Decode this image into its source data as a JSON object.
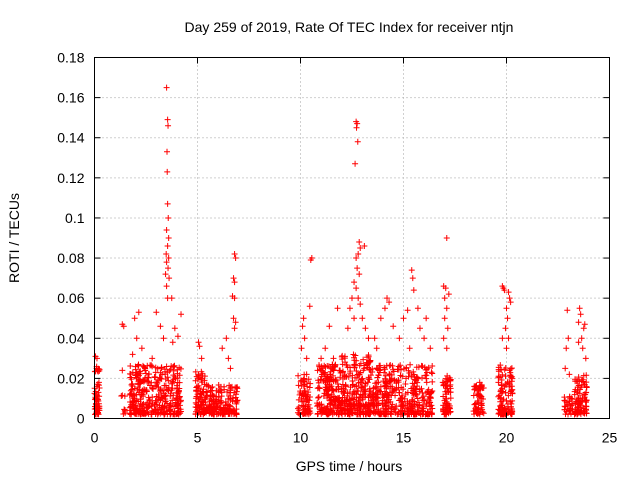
{
  "chart_data": {
    "type": "scatter",
    "title": "Day 259 of 2019, Rate Of TEC Index for receiver ntjn",
    "xlabel": "GPS time / hours",
    "ylabel": "ROTI / TECUs",
    "xlim": [
      0,
      25
    ],
    "ylim": [
      0,
      0.18
    ],
    "x_ticks": [
      0,
      5,
      10,
      15,
      20,
      25
    ],
    "x_tick_labels": [
      "0",
      "5",
      "10",
      "15",
      "20",
      "25"
    ],
    "y_ticks": [
      0,
      0.02,
      0.04,
      0.06,
      0.08,
      0.1,
      0.12,
      0.14,
      0.16,
      0.18
    ],
    "y_tick_labels": [
      "0",
      "0.02",
      "0.04",
      "0.06",
      "0.08",
      "0.1",
      "0.12",
      "0.14",
      "0.16",
      "0.18"
    ],
    "grid": true,
    "marker": "+",
    "color": "#ff0000",
    "series": [
      {
        "name": "ROTI",
        "clusters": [
          {
            "range": [
              0.0,
              0.25
            ],
            "count": 60,
            "ymax": 0.024,
            "peaks": [
              [
                0.05,
                0.031
              ],
              [
                0.12,
                0.03
              ],
              [
                0.1,
                0.025
              ]
            ]
          },
          {
            "range": [
              1.3,
              1.5
            ],
            "count": 8,
            "ymax": 0.01,
            "peaks": [
              [
                1.35,
                0.047
              ],
              [
                1.42,
                0.046
              ],
              [
                1.35,
                0.024
              ]
            ]
          },
          {
            "range": [
              1.7,
              2.5
            ],
            "count": 140,
            "ymax": 0.025,
            "peaks": [
              [
                1.95,
                0.05
              ],
              [
                2.15,
                0.053
              ],
              [
                2.05,
                0.04
              ],
              [
                2.3,
                0.035
              ],
              [
                1.85,
                0.032
              ]
            ]
          },
          {
            "range": [
              2.5,
              4.2
            ],
            "count": 230,
            "ymax": 0.025,
            "peaks": [
              [
                3.5,
                0.165
              ],
              [
                3.55,
                0.149
              ],
              [
                3.57,
                0.146
              ],
              [
                3.52,
                0.133
              ],
              [
                3.53,
                0.123
              ],
              [
                3.55,
                0.107
              ],
              [
                3.58,
                0.1
              ],
              [
                3.5,
                0.094
              ],
              [
                3.6,
                0.09
              ],
              [
                3.55,
                0.086
              ],
              [
                3.48,
                0.082
              ],
              [
                3.6,
                0.08
              ],
              [
                3.5,
                0.078
              ],
              [
                3.57,
                0.075
              ],
              [
                3.45,
                0.072
              ],
              [
                3.62,
                0.07
              ],
              [
                3.5,
                0.066
              ],
              [
                3.55,
                0.06
              ],
              [
                3.75,
                0.06
              ],
              [
                3.0,
                0.053
              ],
              [
                3.2,
                0.046
              ],
              [
                4.2,
                0.052
              ],
              [
                3.9,
                0.045
              ],
              [
                4.05,
                0.041
              ],
              [
                3.8,
                0.038
              ],
              [
                3.35,
                0.04
              ],
              [
                2.8,
                0.03
              ]
            ]
          },
          {
            "range": [
              4.9,
              5.4
            ],
            "count": 80,
            "ymax": 0.022,
            "peaks": [
              [
                5.05,
                0.038
              ],
              [
                5.1,
                0.036
              ],
              [
                5.2,
                0.03
              ]
            ]
          },
          {
            "range": [
              5.4,
              6.95
            ],
            "count": 170,
            "ymax": 0.015,
            "peaks": [
              [
                6.8,
                0.082
              ],
              [
                6.85,
                0.08
              ],
              [
                6.75,
                0.07
              ],
              [
                6.8,
                0.068
              ],
              [
                6.7,
                0.061
              ],
              [
                6.8,
                0.06
              ],
              [
                6.75,
                0.05
              ],
              [
                6.85,
                0.048
              ],
              [
                6.8,
                0.045
              ],
              [
                6.4,
                0.04
              ],
              [
                6.2,
                0.035
              ],
              [
                6.5,
                0.03
              ],
              [
                6.6,
                0.025
              ]
            ]
          },
          {
            "range": [
              9.85,
              10.5
            ],
            "count": 80,
            "ymax": 0.02,
            "peaks": [
              [
                10.15,
                0.05
              ],
              [
                10.1,
                0.046
              ],
              [
                10.2,
                0.04
              ],
              [
                10.05,
                0.035
              ],
              [
                10.3,
                0.03
              ],
              [
                10.45,
                0.056
              ],
              [
                10.5,
                0.079
              ],
              [
                10.55,
                0.08
              ]
            ]
          },
          {
            "range": [
              10.8,
              12.0
            ],
            "count": 190,
            "ymax": 0.025,
            "peaks": [
              [
                11.4,
                0.046
              ],
              [
                11.8,
                0.055
              ],
              [
                11.2,
                0.035
              ],
              [
                11.6,
                0.03
              ],
              [
                11.0,
                0.03
              ]
            ]
          },
          {
            "range": [
              12.0,
              13.4
            ],
            "count": 240,
            "ymax": 0.03,
            "peaks": [
              [
                12.7,
                0.148
              ],
              [
                12.75,
                0.147
              ],
              [
                12.72,
                0.145
              ],
              [
                12.78,
                0.138
              ],
              [
                12.65,
                0.127
              ],
              [
                12.85,
                0.088
              ],
              [
                12.9,
                0.085
              ],
              [
                13.1,
                0.086
              ],
              [
                12.8,
                0.082
              ],
              [
                12.7,
                0.08
              ],
              [
                12.75,
                0.075
              ],
              [
                12.85,
                0.072
              ],
              [
                12.6,
                0.068
              ],
              [
                12.7,
                0.065
              ],
              [
                12.5,
                0.06
              ],
              [
                12.8,
                0.06
              ],
              [
                12.4,
                0.055
              ],
              [
                12.6,
                0.05
              ],
              [
                12.9,
                0.057
              ],
              [
                13.0,
                0.05
              ],
              [
                13.15,
                0.045
              ],
              [
                12.3,
                0.045
              ],
              [
                13.3,
                0.04
              ]
            ]
          },
          {
            "range": [
              13.4,
              16.4
            ],
            "count": 380,
            "ymax": 0.025,
            "peaks": [
              [
                15.4,
                0.074
              ],
              [
                15.45,
                0.07
              ],
              [
                15.5,
                0.064
              ],
              [
                14.2,
                0.06
              ],
              [
                14.3,
                0.058
              ],
              [
                14.1,
                0.055
              ],
              [
                15.2,
                0.054
              ],
              [
                15.7,
                0.055
              ],
              [
                16.1,
                0.05
              ],
              [
                13.9,
                0.05
              ],
              [
                15.0,
                0.05
              ],
              [
                14.5,
                0.046
              ],
              [
                13.6,
                0.04
              ],
              [
                16.0,
                0.04
              ],
              [
                15.8,
                0.045
              ],
              [
                14.8,
                0.04
              ],
              [
                16.3,
                0.035
              ],
              [
                13.7,
                0.035
              ],
              [
                15.3,
                0.035
              ]
            ]
          },
          {
            "range": [
              16.9,
              17.3
            ],
            "count": 70,
            "ymax": 0.02,
            "peaks": [
              [
                17.1,
                0.09
              ],
              [
                16.95,
                0.066
              ],
              [
                17.05,
                0.065
              ],
              [
                17.2,
                0.062
              ],
              [
                17.0,
                0.06
              ],
              [
                17.1,
                0.055
              ],
              [
                17.0,
                0.05
              ],
              [
                17.15,
                0.045
              ],
              [
                16.95,
                0.04
              ],
              [
                17.1,
                0.035
              ]
            ]
          },
          {
            "range": [
              18.4,
              18.9
            ],
            "count": 60,
            "ymax": 0.015,
            "peaks": [
              [
                18.7,
                0.018
              ],
              [
                18.5,
                0.016
              ]
            ]
          },
          {
            "range": [
              19.6,
              20.3
            ],
            "count": 120,
            "ymax": 0.025,
            "peaks": [
              [
                19.8,
                0.066
              ],
              [
                19.85,
                0.065
              ],
              [
                19.9,
                0.064
              ],
              [
                20.1,
                0.063
              ],
              [
                20.15,
                0.06
              ],
              [
                20.2,
                0.058
              ],
              [
                20.0,
                0.055
              ],
              [
                20.05,
                0.05
              ],
              [
                19.95,
                0.045
              ],
              [
                20.1,
                0.04
              ],
              [
                19.8,
                0.04
              ],
              [
                20.0,
                0.035
              ]
            ]
          },
          {
            "range": [
              22.8,
              23.2
            ],
            "count": 30,
            "ymax": 0.01,
            "peaks": [
              [
                22.95,
                0.054
              ],
              [
                23.0,
                0.04
              ],
              [
                22.9,
                0.035
              ],
              [
                22.85,
                0.025
              ],
              [
                23.05,
                0.022
              ]
            ]
          },
          {
            "range": [
              23.3,
              23.9
            ],
            "count": 90,
            "ymax": 0.02,
            "peaks": [
              [
                23.55,
                0.055
              ],
              [
                23.6,
                0.052
              ],
              [
                23.5,
                0.048
              ],
              [
                23.8,
                0.047
              ],
              [
                23.75,
                0.045
              ],
              [
                23.65,
                0.04
              ],
              [
                23.5,
                0.038
              ],
              [
                23.7,
                0.035
              ],
              [
                23.85,
                0.03
              ]
            ]
          }
        ]
      }
    ]
  }
}
